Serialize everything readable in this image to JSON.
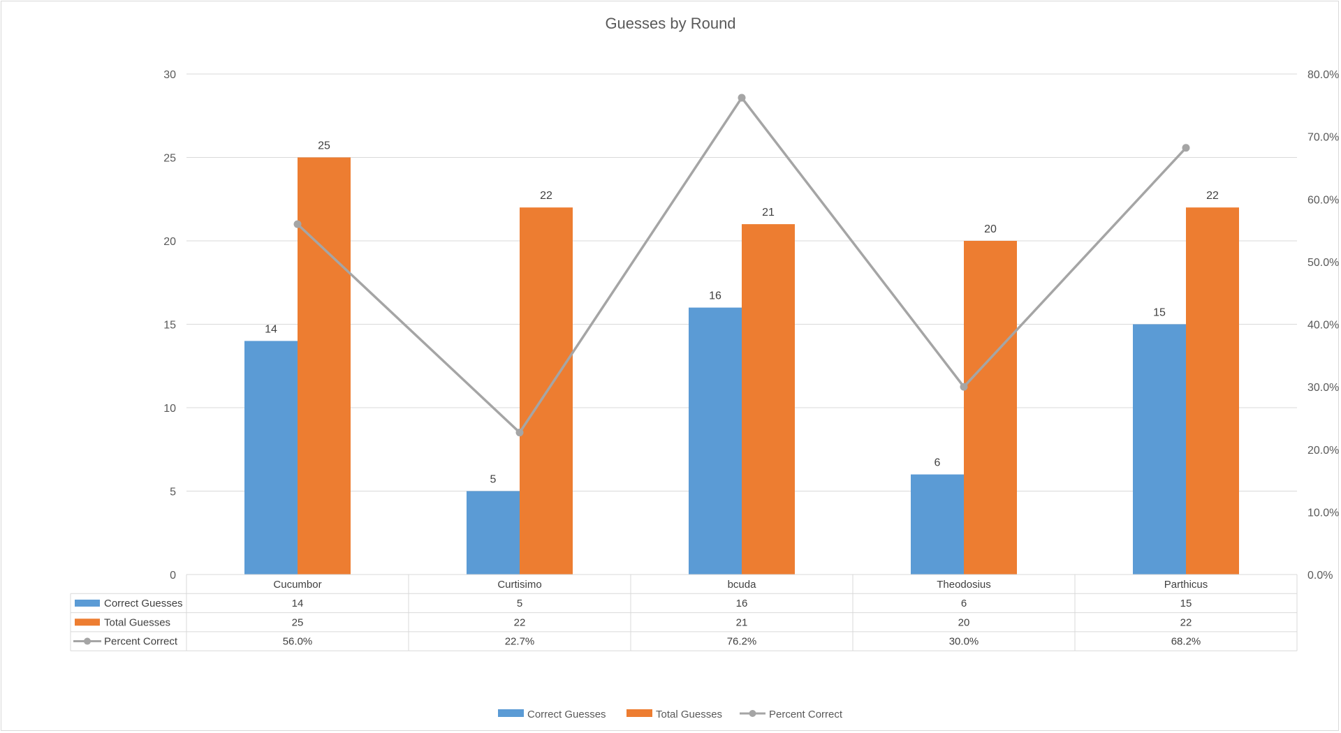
{
  "chart_data": {
    "type": "bar",
    "title": "Guesses by Round",
    "categories": [
      "Cucumbor",
      "Curtisimo",
      "bcuda",
      "Theodosius",
      "Parthicus"
    ],
    "series": [
      {
        "name": "Correct Guesses",
        "type": "bar",
        "axis": "left",
        "color": "#5b9bd5",
        "values": [
          14,
          5,
          16,
          6,
          15
        ],
        "labels": [
          "14",
          "5",
          "16",
          "6",
          "15"
        ]
      },
      {
        "name": "Total Guesses",
        "type": "bar",
        "axis": "left",
        "color": "#ed7d31",
        "values": [
          25,
          22,
          21,
          20,
          22
        ],
        "labels": [
          "25",
          "22",
          "21",
          "20",
          "22"
        ]
      },
      {
        "name": "Percent Correct",
        "type": "line",
        "axis": "right",
        "color": "#a5a5a5",
        "values": [
          56.0,
          22.7,
          76.2,
          30.0,
          68.2
        ],
        "labels": [
          "56.0%",
          "22.7%",
          "76.2%",
          "30.0%",
          "68.2%"
        ]
      }
    ],
    "ylim": [
      0,
      30
    ],
    "y_ticks": [
      "0",
      "5",
      "10",
      "15",
      "20",
      "25",
      "30"
    ],
    "y2lim": [
      0,
      80
    ],
    "y2_ticks": [
      "0.0%",
      "10.0%",
      "20.0%",
      "30.0%",
      "40.0%",
      "50.0%",
      "60.0%",
      "70.0%",
      "80.0%"
    ],
    "grid": true,
    "legend_position": "bottom",
    "data_table": true
  }
}
